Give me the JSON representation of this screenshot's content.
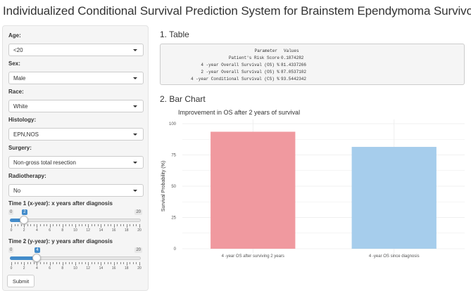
{
  "app": {
    "title": "Individualized Conditional Survival Prediction System for Brainstem Ependymoma Survivors"
  },
  "sidebar": {
    "age": {
      "label": "Age:",
      "value": "<20"
    },
    "sex": {
      "label": "Sex:",
      "value": "Male"
    },
    "race": {
      "label": "Race:",
      "value": "White"
    },
    "histology": {
      "label": "Histology:",
      "value": "EPN,NOS"
    },
    "surgery": {
      "label": "Surgery:",
      "value": "Non-gross total resection"
    },
    "radiotherapy": {
      "label": "Radiotherapy:",
      "value": "No"
    },
    "time1": {
      "label": "Time 1 (x-year): x years after diagnosis",
      "min": "0",
      "max": "20",
      "value": "2",
      "value_num": 2,
      "range": [
        0,
        20
      ],
      "tick_labels": [
        "0",
        "2",
        "4",
        "6",
        "8",
        "10",
        "12",
        "14",
        "16",
        "18",
        "20"
      ]
    },
    "time2": {
      "label": "Time 2 (y-year): y years after diagnosis",
      "min": "0",
      "max": "20",
      "value": "4",
      "value_num": 4,
      "range": [
        0,
        20
      ],
      "tick_labels": [
        "0",
        "2",
        "4",
        "6",
        "8",
        "10",
        "12",
        "14",
        "16",
        "18",
        "20"
      ]
    },
    "submit_label": "Submit"
  },
  "table_section": {
    "heading": "1. Table",
    "columns": [
      "Parameter",
      "Values"
    ],
    "rows": [
      {
        "parameter": "Patient's Risk Score",
        "value": "0.1874282"
      },
      {
        "parameter": "4 -year Overall Survival (OS) %",
        "value": "81.4337266"
      },
      {
        "parameter": "2 -year Overall Survival (OS) %",
        "value": "87.0537102"
      },
      {
        "parameter": "4 -year Conditional Survival (CS) %",
        "value": "93.5442342"
      }
    ]
  },
  "chart_section": {
    "heading": "2. Bar Chart"
  },
  "chart_data": {
    "type": "bar",
    "title": "Improvement in OS after 2 years of survival",
    "xlabel": "",
    "ylabel": "Survival Probability (%)",
    "categories": [
      "4 -year OS after surviving 2 years",
      "4 -year OS since diagnosis"
    ],
    "values": [
      93.5442342,
      81.4337266
    ],
    "colors": [
      "#f0999f",
      "#a6cdec"
    ],
    "ylim": [
      0,
      100
    ],
    "yticks": [
      0,
      25,
      50,
      75,
      100
    ],
    "grid": true,
    "legend": "none"
  }
}
